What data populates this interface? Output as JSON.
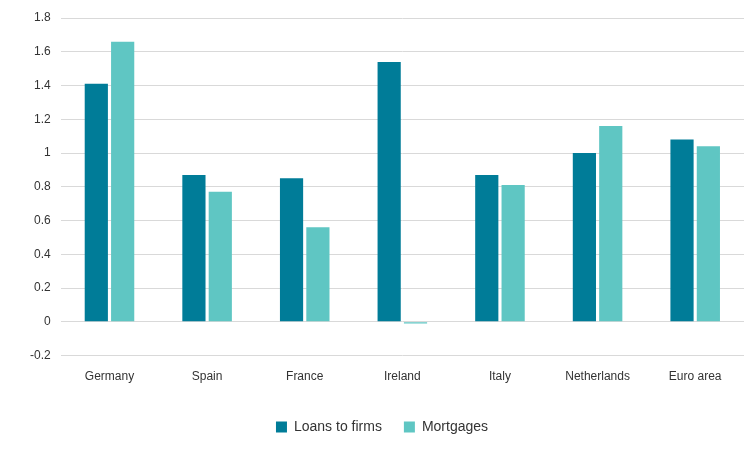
{
  "chart_data": {
    "type": "bar",
    "categories": [
      "Germany",
      "Spain",
      "France",
      "Ireland",
      "Italy",
      "Netherlands",
      "Euro area"
    ],
    "series": [
      {
        "name": "Loans to firms",
        "color": "#007c98",
        "values": [
          1.41,
          0.87,
          0.85,
          1.54,
          0.87,
          1.0,
          1.08
        ]
      },
      {
        "name": "Mortgages",
        "color": "#5fc6c3",
        "values": [
          1.66,
          0.77,
          0.56,
          -0.01,
          0.81,
          1.16,
          1.04
        ]
      }
    ],
    "ylim": [
      -0.2,
      1.8
    ],
    "yticks": [
      -0.2,
      0,
      0.2,
      0.4,
      0.6,
      0.8,
      1,
      1.2,
      1.4,
      1.6,
      1.8
    ],
    "grid": true,
    "legend": "bottom"
  }
}
